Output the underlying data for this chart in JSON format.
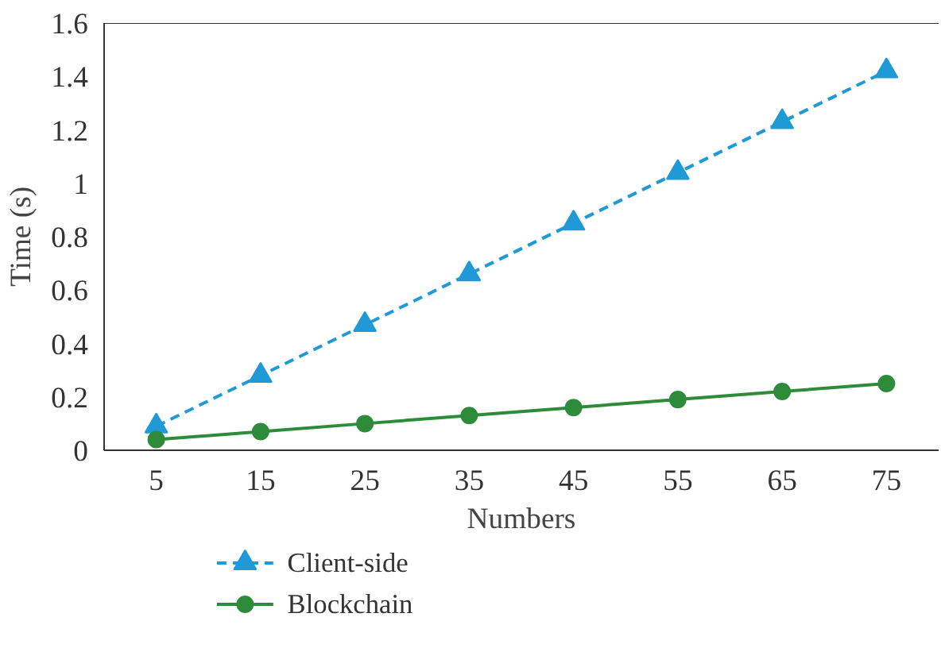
{
  "chart_data": {
    "type": "line",
    "xlabel": "Numbers",
    "ylabel": "Time (s)",
    "categories": [
      "5",
      "15",
      "25",
      "35",
      "45",
      "55",
      "65",
      "75"
    ],
    "ylim": [
      0,
      1.6
    ],
    "yticks": [
      0,
      0.2,
      0.4,
      0.6,
      0.8,
      1,
      1.2,
      1.4,
      1.6
    ],
    "series": [
      {
        "name": "Client-side",
        "color": "#1f9ad6",
        "marker": "triangle",
        "line_style": "dashed",
        "values": [
          0.09,
          0.28,
          0.47,
          0.66,
          0.85,
          1.04,
          1.23,
          1.42
        ]
      },
      {
        "name": "Blockchain",
        "color": "#2e8b3a",
        "marker": "circle",
        "line_style": "solid",
        "values": [
          0.04,
          0.07,
          0.1,
          0.13,
          0.16,
          0.19,
          0.22,
          0.25
        ]
      }
    ],
    "grid": false,
    "legend": "bottom"
  }
}
